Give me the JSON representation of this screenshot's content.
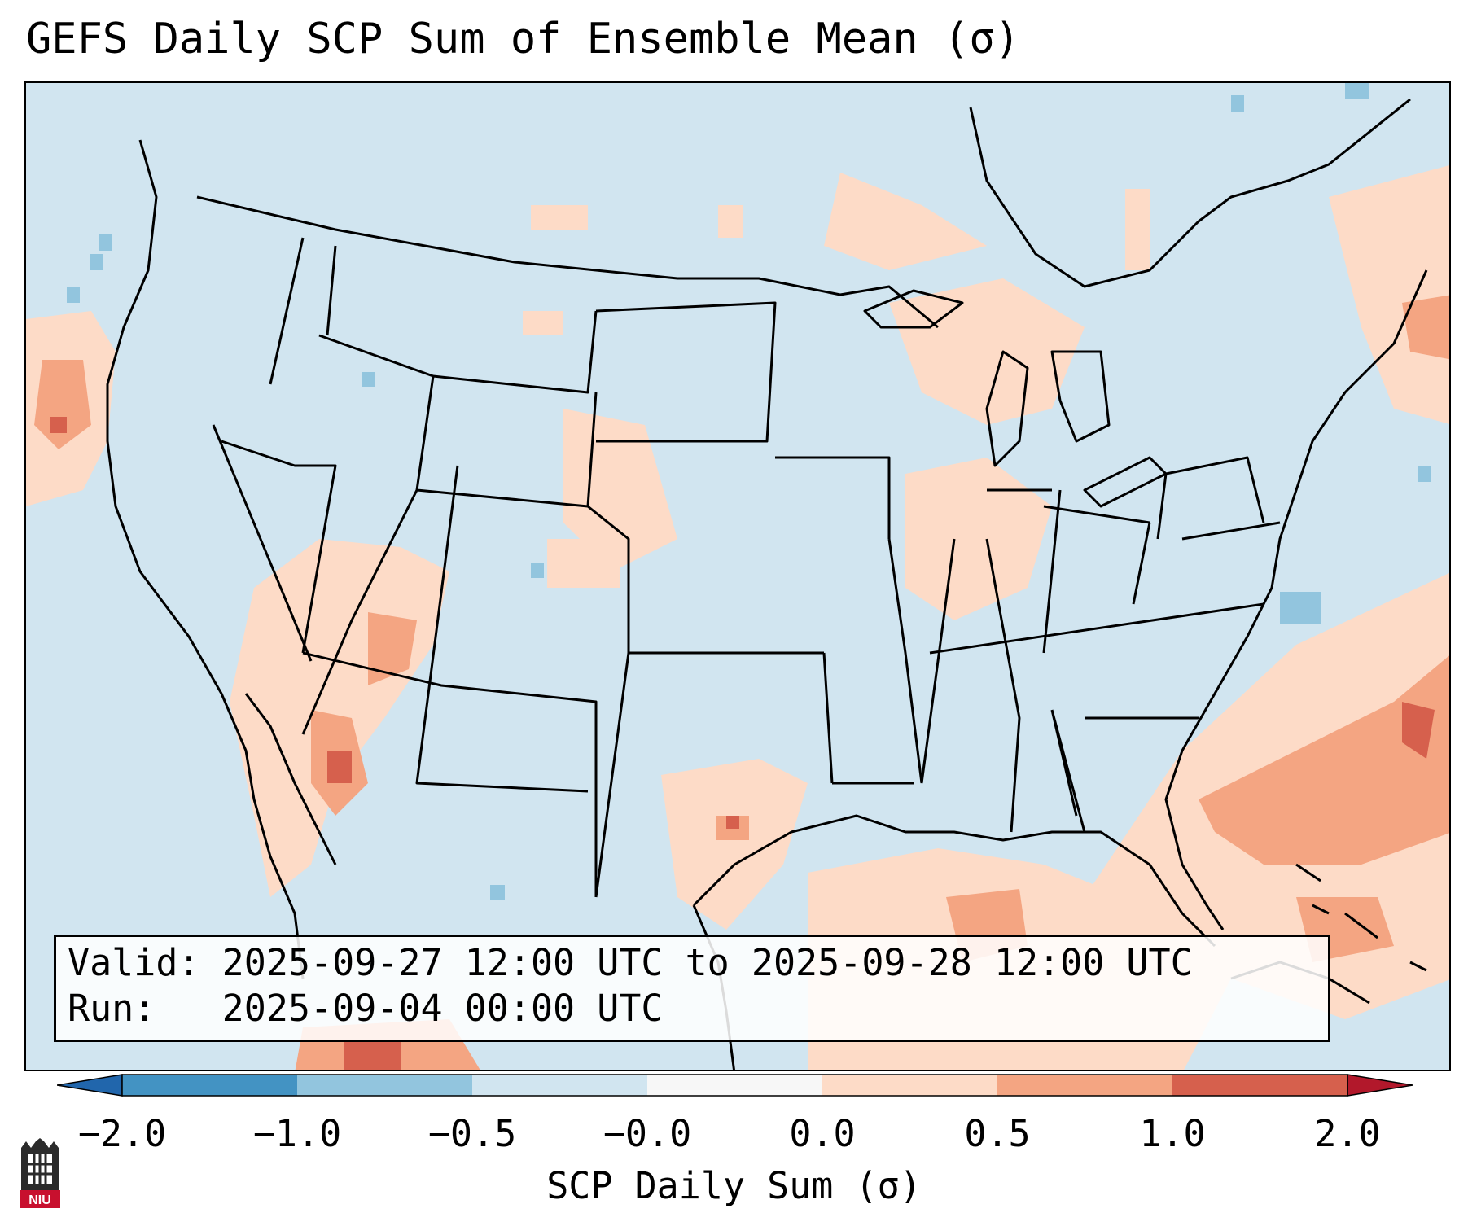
{
  "title": "GEFS Daily SCP Sum of Ensemble Mean (σ)",
  "info": {
    "valid_line": "Valid: 2025-09-27 12:00 UTC to 2025-09-28 12:00 UTC",
    "run_line": "Run:   2025-09-04 00:00 UTC"
  },
  "colorbar": {
    "label": "SCP Daily Sum (σ)",
    "ticks": [
      "−2.0",
      "−1.0",
      "−0.5",
      "−0.0",
      "0.0",
      "0.5",
      "1.0",
      "2.0"
    ],
    "colors": [
      "#4393c3",
      "#92c5de",
      "#d1e5f0",
      "#f7f7f7",
      "#fddbc7",
      "#f4a582",
      "#d6604d"
    ],
    "under_color": "#2166ac",
    "over_color": "#b2182b"
  },
  "logo": {
    "text": "NIU",
    "color": "#c8102e"
  },
  "map_colors": {
    "ocean": "#d1e5f0",
    "land": "#d1e5f0",
    "light_positive": "#fddbc7",
    "medium_positive": "#f4a582",
    "strong_positive": "#d6604d",
    "light_negative": "#92c5de",
    "border": "#000000"
  }
}
